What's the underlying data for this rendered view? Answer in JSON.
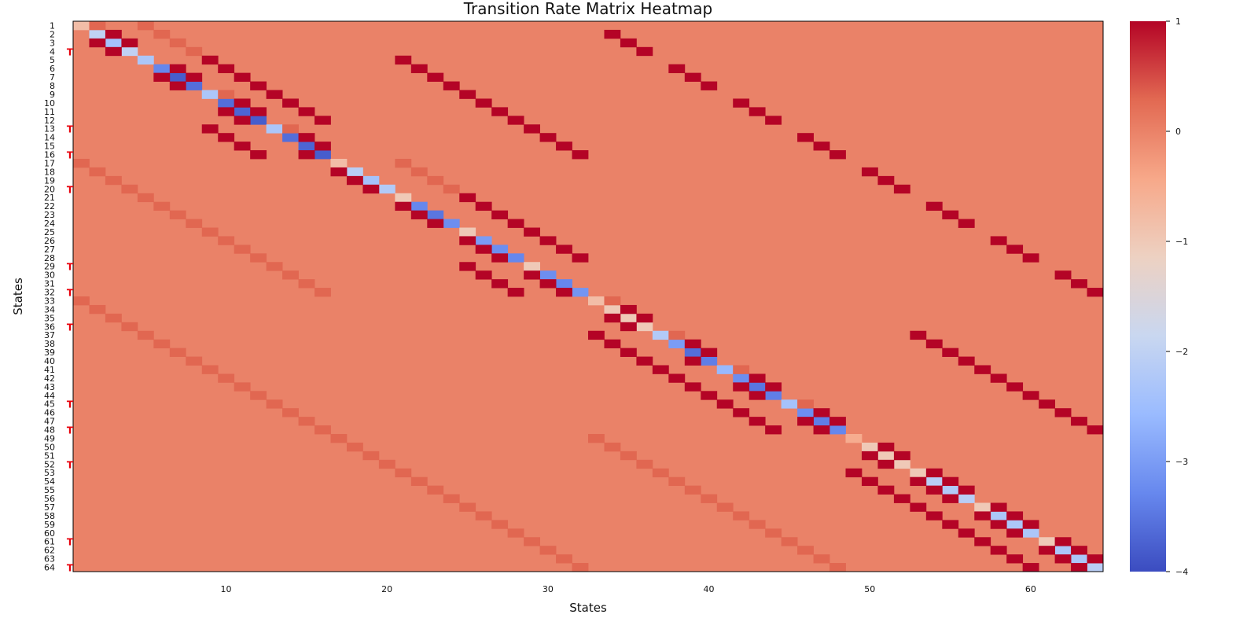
{
  "chart_data": {
    "type": "heatmap",
    "title": "Transition Rate Matrix Heatmap",
    "xlabel": "States",
    "ylabel": "States",
    "n_states": 64,
    "x_ticks": [
      10,
      20,
      30,
      40,
      50,
      60
    ],
    "y_ticks": [
      1,
      2,
      3,
      4,
      5,
      6,
      7,
      8,
      9,
      10,
      11,
      12,
      13,
      14,
      15,
      16,
      17,
      18,
      19,
      20,
      21,
      22,
      23,
      24,
      25,
      26,
      27,
      28,
      29,
      30,
      31,
      32,
      33,
      34,
      35,
      36,
      37,
      38,
      39,
      40,
      41,
      42,
      43,
      44,
      45,
      46,
      47,
      48,
      49,
      50,
      51,
      52,
      53,
      54,
      55,
      56,
      57,
      58,
      59,
      60,
      61,
      62,
      63,
      64
    ],
    "marked_rows": [
      4,
      13,
      16,
      20,
      29,
      32,
      36,
      45,
      48,
      52,
      61,
      64
    ],
    "marker_glyph": "T",
    "colorbar": {
      "min": -4,
      "max": 1,
      "ticks": [
        1,
        0,
        -1,
        -2,
        -3,
        -4
      ]
    },
    "colormap": [
      "#3b4cc0",
      "#6788ee",
      "#9abbff",
      "#c9d7f0",
      "#edd1c2",
      "#f7a889",
      "#e26952",
      "#b40426"
    ],
    "default_value": 0,
    "diagonal": [
      -0.8,
      -2,
      -2.4,
      -2,
      -2.3,
      -3.3,
      -3.8,
      -3.6,
      -2.3,
      -3.6,
      -3.7,
      -3.8,
      -2.3,
      -3.6,
      -3.7,
      -3.8,
      -0.8,
      -2.1,
      -2.4,
      -2.2,
      -1,
      -3.3,
      -3.5,
      -3.2,
      -1,
      -3,
      -3.2,
      -3.3,
      -1,
      -3.2,
      -3.3,
      -3.1,
      -0.8,
      -1,
      -1,
      -1,
      -2.2,
      -3,
      -3.6,
      -3.4,
      -2.6,
      -3.2,
      -3.5,
      -3.4,
      -2.4,
      -3.2,
      -3.4,
      -3.3,
      -0.5,
      -1,
      -1,
      -1,
      -1,
      -2.1,
      -2.2,
      -2.1,
      -1,
      -2.3,
      -2.3,
      -2.3,
      -1,
      -2.3,
      -2.3,
      -2.1
    ],
    "entries": [
      [
        1,
        2,
        0.3
      ],
      [
        1,
        5,
        0.3
      ],
      [
        2,
        6,
        0.3
      ],
      [
        3,
        7,
        0.3
      ],
      [
        4,
        8,
        0.3
      ],
      [
        2,
        3,
        1
      ],
      [
        3,
        2,
        1
      ],
      [
        3,
        4,
        1
      ],
      [
        4,
        3,
        1
      ],
      [
        2,
        34,
        1
      ],
      [
        3,
        35,
        1
      ],
      [
        4,
        36,
        1
      ],
      [
        5,
        9,
        1
      ],
      [
        5,
        21,
        1
      ],
      [
        6,
        7,
        1
      ],
      [
        6,
        10,
        1
      ],
      [
        6,
        22,
        1
      ],
      [
        6,
        38,
        1
      ],
      [
        7,
        6,
        1
      ],
      [
        7,
        8,
        1
      ],
      [
        7,
        11,
        1
      ],
      [
        7,
        23,
        1
      ],
      [
        7,
        39,
        1
      ],
      [
        8,
        7,
        1
      ],
      [
        8,
        12,
        1
      ],
      [
        8,
        24,
        1
      ],
      [
        8,
        40,
        1
      ],
      [
        9,
        10,
        0.3
      ],
      [
        9,
        13,
        1
      ],
      [
        9,
        25,
        1
      ],
      [
        10,
        11,
        1
      ],
      [
        10,
        14,
        1
      ],
      [
        10,
        26,
        1
      ],
      [
        10,
        42,
        1
      ],
      [
        11,
        10,
        1
      ],
      [
        11,
        12,
        1
      ],
      [
        11,
        15,
        1
      ],
      [
        11,
        27,
        1
      ],
      [
        11,
        43,
        1
      ],
      [
        12,
        11,
        1
      ],
      [
        12,
        16,
        1
      ],
      [
        12,
        28,
        1
      ],
      [
        12,
        44,
        1
      ],
      [
        13,
        9,
        1
      ],
      [
        13,
        14,
        0.3
      ],
      [
        13,
        29,
        1
      ],
      [
        14,
        10,
        1
      ],
      [
        14,
        15,
        1
      ],
      [
        14,
        30,
        1
      ],
      [
        14,
        46,
        1
      ],
      [
        15,
        11,
        1
      ],
      [
        15,
        16,
        1
      ],
      [
        15,
        31,
        1
      ],
      [
        15,
        47,
        1
      ],
      [
        16,
        12,
        1
      ],
      [
        16,
        15,
        1
      ],
      [
        16,
        32,
        1
      ],
      [
        16,
        48,
        1
      ],
      [
        17,
        1,
        0.3
      ],
      [
        17,
        21,
        0.3
      ],
      [
        18,
        2,
        0.3
      ],
      [
        18,
        22,
        0.3
      ],
      [
        19,
        3,
        0.3
      ],
      [
        19,
        23,
        0.3
      ],
      [
        20,
        4,
        0.3
      ],
      [
        20,
        24,
        0.3
      ],
      [
        18,
        17,
        1
      ],
      [
        18,
        50,
        1
      ],
      [
        19,
        18,
        1
      ],
      [
        19,
        51,
        1
      ],
      [
        20,
        19,
        1
      ],
      [
        20,
        52,
        1
      ],
      [
        21,
        5,
        0.3
      ],
      [
        21,
        25,
        1
      ],
      [
        22,
        6,
        0.3
      ],
      [
        22,
        21,
        1
      ],
      [
        22,
        26,
        1
      ],
      [
        22,
        54,
        1
      ],
      [
        23,
        7,
        0.3
      ],
      [
        23,
        22,
        1
      ],
      [
        23,
        27,
        1
      ],
      [
        23,
        55,
        1
      ],
      [
        24,
        8,
        0.3
      ],
      [
        24,
        23,
        1
      ],
      [
        24,
        28,
        1
      ],
      [
        24,
        56,
        1
      ],
      [
        25,
        9,
        0.3
      ],
      [
        25,
        29,
        1
      ],
      [
        26,
        10,
        0.3
      ],
      [
        26,
        25,
        1
      ],
      [
        26,
        30,
        1
      ],
      [
        26,
        58,
        1
      ],
      [
        27,
        11,
        0.3
      ],
      [
        27,
        26,
        1
      ],
      [
        27,
        31,
        1
      ],
      [
        27,
        59,
        1
      ],
      [
        28,
        12,
        0.3
      ],
      [
        28,
        27,
        1
      ],
      [
        28,
        32,
        1
      ],
      [
        28,
        60,
        1
      ],
      [
        29,
        13,
        0.3
      ],
      [
        29,
        25,
        1
      ],
      [
        30,
        14,
        0.3
      ],
      [
        30,
        26,
        1
      ],
      [
        30,
        29,
        1
      ],
      [
        30,
        62,
        1
      ],
      [
        31,
        15,
        0.3
      ],
      [
        31,
        27,
        1
      ],
      [
        31,
        30,
        1
      ],
      [
        31,
        63,
        1
      ],
      [
        32,
        16,
        0.3
      ],
      [
        32,
        28,
        1
      ],
      [
        32,
        31,
        1
      ],
      [
        32,
        64,
        1
      ],
      [
        33,
        1,
        0.3
      ],
      [
        33,
        34,
        0.3
      ],
      [
        34,
        2,
        0.3
      ],
      [
        34,
        35,
        1
      ],
      [
        35,
        3,
        0.3
      ],
      [
        35,
        34,
        1
      ],
      [
        35,
        36,
        1
      ],
      [
        36,
        4,
        0.3
      ],
      [
        36,
        35,
        1
      ],
      [
        37,
        5,
        0.3
      ],
      [
        37,
        33,
        1
      ],
      [
        37,
        38,
        0.3
      ],
      [
        37,
        53,
        1
      ],
      [
        38,
        6,
        0.3
      ],
      [
        38,
        34,
        1
      ],
      [
        38,
        39,
        1
      ],
      [
        38,
        54,
        1
      ],
      [
        39,
        7,
        0.3
      ],
      [
        39,
        35,
        1
      ],
      [
        39,
        40,
        1
      ],
      [
        39,
        55,
        1
      ],
      [
        40,
        8,
        0.3
      ],
      [
        40,
        36,
        1
      ],
      [
        40,
        39,
        1
      ],
      [
        40,
        56,
        1
      ],
      [
        41,
        9,
        0.3
      ],
      [
        41,
        37,
        1
      ],
      [
        41,
        42,
        0.3
      ],
      [
        41,
        57,
        1
      ],
      [
        42,
        10,
        0.3
      ],
      [
        42,
        38,
        1
      ],
      [
        42,
        43,
        1
      ],
      [
        42,
        58,
        1
      ],
      [
        43,
        11,
        0.3
      ],
      [
        43,
        39,
        1
      ],
      [
        43,
        42,
        1
      ],
      [
        43,
        44,
        1
      ],
      [
        43,
        59,
        1
      ],
      [
        44,
        12,
        0.3
      ],
      [
        44,
        40,
        1
      ],
      [
        44,
        43,
        1
      ],
      [
        44,
        60,
        1
      ],
      [
        45,
        13,
        0.3
      ],
      [
        45,
        41,
        1
      ],
      [
        45,
        46,
        0.3
      ],
      [
        45,
        61,
        1
      ],
      [
        46,
        14,
        0.3
      ],
      [
        46,
        42,
        1
      ],
      [
        46,
        47,
        1
      ],
      [
        46,
        62,
        1
      ],
      [
        47,
        15,
        0.3
      ],
      [
        47,
        43,
        1
      ],
      [
        47,
        46,
        1
      ],
      [
        47,
        48,
        1
      ],
      [
        47,
        63,
        1
      ],
      [
        48,
        16,
        0.3
      ],
      [
        48,
        44,
        1
      ],
      [
        48,
        47,
        1
      ],
      [
        48,
        64,
        1
      ],
      [
        49,
        17,
        0.3
      ],
      [
        49,
        33,
        0.3
      ],
      [
        50,
        18,
        0.3
      ],
      [
        50,
        34,
        0.3
      ],
      [
        50,
        51,
        1
      ],
      [
        51,
        19,
        0.3
      ],
      [
        51,
        35,
        0.3
      ],
      [
        51,
        50,
        1
      ],
      [
        51,
        52,
        1
      ],
      [
        52,
        20,
        0.3
      ],
      [
        52,
        36,
        0.3
      ],
      [
        52,
        51,
        1
      ],
      [
        53,
        21,
        0.3
      ],
      [
        53,
        37,
        0.3
      ],
      [
        53,
        49,
        1
      ],
      [
        53,
        54,
        1
      ],
      [
        54,
        22,
        0.3
      ],
      [
        54,
        38,
        0.3
      ],
      [
        54,
        50,
        1
      ],
      [
        54,
        53,
        1
      ],
      [
        54,
        55,
        1
      ],
      [
        55,
        23,
        0.3
      ],
      [
        55,
        39,
        0.3
      ],
      [
        55,
        51,
        1
      ],
      [
        55,
        54,
        1
      ],
      [
        55,
        56,
        1
      ],
      [
        56,
        24,
        0.3
      ],
      [
        56,
        40,
        0.3
      ],
      [
        56,
        52,
        1
      ],
      [
        56,
        55,
        1
      ],
      [
        57,
        25,
        0.3
      ],
      [
        57,
        41,
        0.3
      ],
      [
        57,
        53,
        1
      ],
      [
        57,
        58,
        1
      ],
      [
        58,
        26,
        0.3
      ],
      [
        58,
        42,
        0.3
      ],
      [
        58,
        54,
        1
      ],
      [
        58,
        57,
        1
      ],
      [
        58,
        59,
        1
      ],
      [
        59,
        27,
        0.3
      ],
      [
        59,
        43,
        0.3
      ],
      [
        59,
        55,
        1
      ],
      [
        59,
        58,
        1
      ],
      [
        59,
        60,
        1
      ],
      [
        60,
        28,
        0.3
      ],
      [
        60,
        44,
        0.3
      ],
      [
        60,
        56,
        1
      ],
      [
        60,
        59,
        1
      ],
      [
        61,
        29,
        0.3
      ],
      [
        61,
        45,
        0.3
      ],
      [
        61,
        57,
        1
      ],
      [
        61,
        62,
        1
      ],
      [
        62,
        30,
        0.3
      ],
      [
        62,
        46,
        0.3
      ],
      [
        62,
        58,
        1
      ],
      [
        62,
        61,
        1
      ],
      [
        62,
        63,
        1
      ],
      [
        63,
        31,
        0.3
      ],
      [
        63,
        47,
        0.3
      ],
      [
        63,
        59,
        1
      ],
      [
        63,
        62,
        1
      ],
      [
        63,
        64,
        1
      ],
      [
        64,
        32,
        0.3
      ],
      [
        64,
        48,
        0.3
      ],
      [
        64,
        60,
        1
      ],
      [
        64,
        63,
        1
      ]
    ]
  }
}
